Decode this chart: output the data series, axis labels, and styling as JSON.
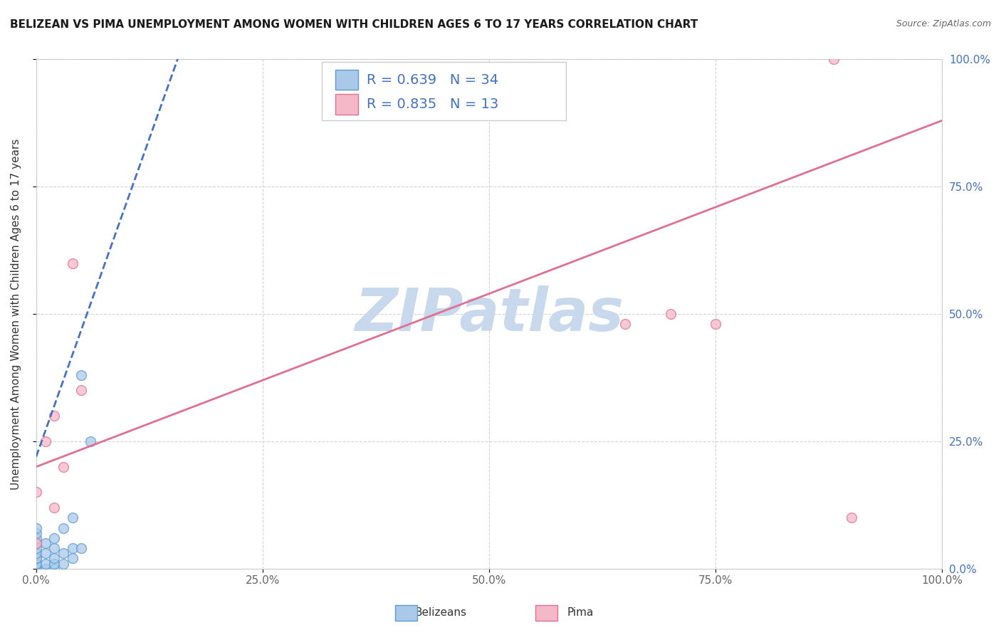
{
  "title": "BELIZEAN VS PIMA UNEMPLOYMENT AMONG WOMEN WITH CHILDREN AGES 6 TO 17 YEARS CORRELATION CHART",
  "source": "Source: ZipAtlas.com",
  "ylabel": "Unemployment Among Women with Children Ages 6 to 17 years",
  "xlim": [
    0,
    1.0
  ],
  "ylim": [
    0,
    1.0
  ],
  "xticks": [
    0.0,
    0.25,
    0.5,
    0.75,
    1.0
  ],
  "yticks": [
    0.0,
    0.25,
    0.5,
    0.75,
    1.0
  ],
  "xtick_labels": [
    "0.0%",
    "25.0%",
    "50.0%",
    "75.0%",
    "100.0%"
  ],
  "ytick_labels": [
    "0.0%",
    "25.0%",
    "50.0%",
    "75.0%",
    "100.0%"
  ],
  "belizean_color": "#aac9e8",
  "belizean_edge_color": "#5b9bd5",
  "pima_color": "#f4b8c8",
  "pima_edge_color": "#e07090",
  "belizean_R": 0.639,
  "belizean_N": 34,
  "pima_R": 0.835,
  "pima_N": 13,
  "legend_text_color": "#4472c4",
  "watermark_text": "ZIPatlas",
  "watermark_color": "#c8d8ed",
  "belizean_scatter_x": [
    0.0,
    0.0,
    0.0,
    0.0,
    0.0,
    0.0,
    0.0,
    0.0,
    0.0,
    0.0,
    0.0,
    0.0,
    0.0,
    0.0,
    0.0,
    0.0,
    0.01,
    0.01,
    0.01,
    0.01,
    0.02,
    0.02,
    0.02,
    0.02,
    0.02,
    0.03,
    0.03,
    0.03,
    0.04,
    0.04,
    0.04,
    0.05,
    0.05,
    0.06
  ],
  "belizean_scatter_y": [
    0.0,
    0.0,
    0.0,
    0.0,
    0.0,
    0.0,
    0.01,
    0.01,
    0.02,
    0.02,
    0.03,
    0.04,
    0.05,
    0.06,
    0.07,
    0.08,
    0.0,
    0.01,
    0.03,
    0.05,
    0.0,
    0.01,
    0.02,
    0.04,
    0.06,
    0.01,
    0.03,
    0.08,
    0.02,
    0.04,
    0.1,
    0.04,
    0.38,
    0.25
  ],
  "pima_scatter_x": [
    0.0,
    0.0,
    0.01,
    0.02,
    0.02,
    0.03,
    0.04,
    0.05,
    0.65,
    0.7,
    0.75,
    0.88,
    0.9
  ],
  "pima_scatter_y": [
    0.05,
    0.15,
    0.25,
    0.12,
    0.3,
    0.2,
    0.6,
    0.35,
    0.48,
    0.5,
    0.48,
    1.0,
    0.1
  ],
  "belizean_line_color": "#4472c4",
  "pima_line_color": "#e07090",
  "belizean_line_x": [
    0.0,
    0.16
  ],
  "belizean_line_y": [
    0.22,
    1.02
  ],
  "pima_line_x": [
    0.0,
    1.0
  ],
  "pima_line_y": [
    0.2,
    0.88
  ],
  "grid_color": "#c8c8c8",
  "bg_color": "#ffffff",
  "title_fontsize": 11,
  "axis_label_fontsize": 11,
  "tick_fontsize": 11,
  "legend_fontsize": 14,
  "marker_size": 100,
  "marker_alpha": 0.75
}
